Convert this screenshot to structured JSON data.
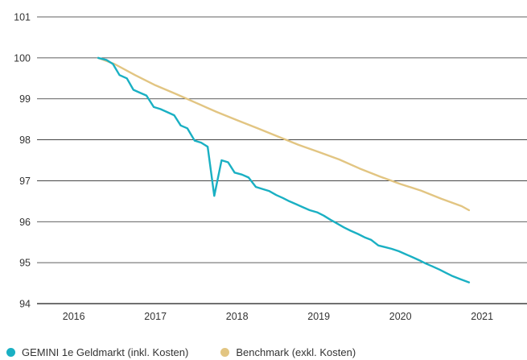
{
  "chart_data": {
    "type": "line",
    "title": "",
    "xlabel": "",
    "ylabel": "",
    "x_ticks": [
      "2016",
      "2017",
      "2018",
      "2019",
      "2020",
      "2021"
    ],
    "y_ticks": [
      "94",
      "95",
      "96",
      "97",
      "98",
      "99",
      "100",
      "101"
    ],
    "xlim": [
      2015.55,
      2021.55
    ],
    "ylim": [
      94,
      101
    ],
    "grid": "horizontal",
    "legend_position": "bottom-left",
    "series": [
      {
        "name": "GEMINI 1e Geldmarkt (inkl. Kosten)",
        "color": "#1ab0c3",
        "points": [
          [
            2016.3,
            100.0
          ],
          [
            2016.4,
            99.95
          ],
          [
            2016.48,
            99.85
          ],
          [
            2016.56,
            99.58
          ],
          [
            2016.65,
            99.5
          ],
          [
            2016.73,
            99.22
          ],
          [
            2016.81,
            99.15
          ],
          [
            2016.89,
            99.08
          ],
          [
            2016.98,
            98.8
          ],
          [
            2017.06,
            98.75
          ],
          [
            2017.14,
            98.68
          ],
          [
            2017.23,
            98.6
          ],
          [
            2017.31,
            98.35
          ],
          [
            2017.39,
            98.28
          ],
          [
            2017.48,
            97.98
          ],
          [
            2017.56,
            97.93
          ],
          [
            2017.64,
            97.83
          ],
          [
            2017.72,
            96.63
          ],
          [
            2017.81,
            97.5
          ],
          [
            2017.89,
            97.45
          ],
          [
            2017.97,
            97.2
          ],
          [
            2018.06,
            97.15
          ],
          [
            2018.14,
            97.08
          ],
          [
            2018.23,
            96.85
          ],
          [
            2018.31,
            96.8
          ],
          [
            2018.39,
            96.75
          ],
          [
            2018.48,
            96.65
          ],
          [
            2018.56,
            96.58
          ],
          [
            2018.64,
            96.5
          ],
          [
            2018.73,
            96.42
          ],
          [
            2018.81,
            96.35
          ],
          [
            2018.89,
            96.28
          ],
          [
            2018.98,
            96.23
          ],
          [
            2019.06,
            96.15
          ],
          [
            2019.14,
            96.05
          ],
          [
            2019.23,
            95.95
          ],
          [
            2019.31,
            95.86
          ],
          [
            2019.39,
            95.78
          ],
          [
            2019.48,
            95.7
          ],
          [
            2019.56,
            95.62
          ],
          [
            2019.64,
            95.56
          ],
          [
            2019.73,
            95.42
          ],
          [
            2019.81,
            95.38
          ],
          [
            2019.89,
            95.34
          ],
          [
            2019.98,
            95.28
          ],
          [
            2020.06,
            95.21
          ],
          [
            2020.14,
            95.14
          ],
          [
            2020.23,
            95.06
          ],
          [
            2020.31,
            94.98
          ],
          [
            2020.39,
            94.91
          ],
          [
            2020.48,
            94.83
          ],
          [
            2020.56,
            94.75
          ],
          [
            2020.64,
            94.67
          ],
          [
            2020.73,
            94.6
          ],
          [
            2020.84,
            94.52
          ]
        ]
      },
      {
        "name": "Benchmark (exkl. Kosten)",
        "color": "#e2c582",
        "points": [
          [
            2016.3,
            100.0
          ],
          [
            2016.5,
            99.85
          ],
          [
            2016.75,
            99.58
          ],
          [
            2017.0,
            99.33
          ],
          [
            2017.25,
            99.12
          ],
          [
            2017.5,
            98.9
          ],
          [
            2017.75,
            98.68
          ],
          [
            2018.0,
            98.48
          ],
          [
            2018.25,
            98.28
          ],
          [
            2018.5,
            98.08
          ],
          [
            2018.75,
            97.88
          ],
          [
            2019.0,
            97.7
          ],
          [
            2019.25,
            97.52
          ],
          [
            2019.5,
            97.3
          ],
          [
            2019.75,
            97.1
          ],
          [
            2020.0,
            96.92
          ],
          [
            2020.25,
            96.76
          ],
          [
            2020.5,
            96.56
          ],
          [
            2020.75,
            96.38
          ],
          [
            2020.84,
            96.28
          ]
        ]
      }
    ]
  }
}
